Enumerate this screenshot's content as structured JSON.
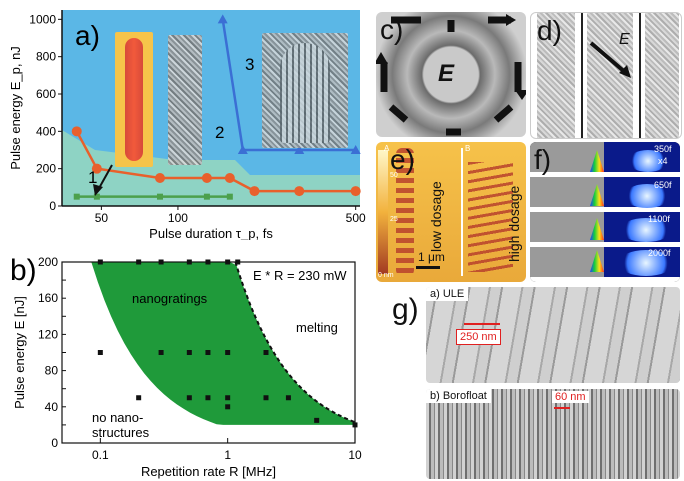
{
  "panels": {
    "a": {
      "label": "a)"
    },
    "b": {
      "label": "b)"
    },
    "c": {
      "label": "c)",
      "center_label": "E"
    },
    "d": {
      "label": "d)",
      "vector_label": "E"
    },
    "e": {
      "label": "e)",
      "sub_a": "A",
      "sub_b": "B",
      "low": "low dosage",
      "high": "high dosage",
      "scale": "1 μm",
      "cbar_ticks": [
        "50",
        "25",
        "0 nm"
      ]
    },
    "f": {
      "label": "f)",
      "times": [
        "350f",
        "650f",
        "1100f",
        "2000f"
      ],
      "zoom": "x4"
    },
    "g": {
      "label": "g)",
      "top_title": "a) ULE",
      "top_scale": "250 nm",
      "bottom_title": "b) Borofloat",
      "bottom_scale": "60 nm"
    }
  },
  "chart_data": [
    {
      "type": "line",
      "panel": "a",
      "xlabel": "Pulse duration τ_p, fs",
      "ylabel": "Pulse energy E_p, nJ",
      "x_scale": "log",
      "xlim": [
        35,
        520
      ],
      "ylim": [
        0,
        1050
      ],
      "xticks": [
        "50",
        "100",
        "500"
      ],
      "xtick_values": [
        50,
        100,
        500
      ],
      "yticks": [
        "0",
        "200",
        "400",
        "600",
        "800",
        "1000"
      ],
      "ytick_values": [
        0,
        200,
        400,
        600,
        800,
        1000
      ],
      "region_labels": [
        "1",
        "2",
        "3"
      ],
      "series": [
        {
          "color": "#e8602c",
          "x": [
            40,
            48,
            85,
            130,
            160,
            200,
            300,
            500
          ],
          "y": [
            400,
            200,
            150,
            150,
            150,
            80,
            80,
            80
          ]
        },
        {
          "color": "#4ca04c",
          "x": [
            40,
            48,
            85,
            130,
            160
          ],
          "y": [
            50,
            50,
            50,
            50,
            50
          ]
        },
        {
          "color": "#3b6fd4",
          "x": [
            150,
            180,
            300,
            500
          ],
          "y": [
            1000,
            300,
            300,
            300
          ]
        }
      ]
    },
    {
      "type": "scatter",
      "panel": "b",
      "xlabel": "Repetition rate R [MHz]",
      "ylabel": "Pulse energy E [nJ]",
      "x_scale": "log",
      "xlim": [
        0.05,
        10
      ],
      "ylim": [
        0,
        200
      ],
      "xticks": [
        "0.1",
        "1",
        "10"
      ],
      "xtick_values": [
        0.1,
        1,
        10
      ],
      "yticks": [
        "0",
        "20",
        "40",
        "60",
        "80",
        "100",
        "120",
        "140",
        "160",
        "180",
        "200"
      ],
      "ytick_values": [
        0,
        20,
        40,
        60,
        80,
        100,
        120,
        140,
        160,
        180,
        200
      ],
      "annotations": [
        "E * R = 230 mW",
        "nanogratings",
        "melting",
        "no nano-",
        "structures"
      ],
      "points": {
        "x": [
          0.1,
          0.2,
          0.3,
          0.5,
          0.7,
          1.0,
          1.2,
          0.1,
          0.3,
          0.5,
          0.7,
          1.0,
          2.0,
          0.2,
          0.5,
          0.7,
          1.0,
          2.0,
          3.0,
          1.0,
          5.0,
          10.0
        ],
        "y": [
          200,
          200,
          200,
          200,
          200,
          200,
          200,
          100,
          100,
          100,
          100,
          100,
          100,
          50,
          50,
          50,
          50,
          50,
          50,
          40,
          25,
          20
        ]
      }
    }
  ]
}
